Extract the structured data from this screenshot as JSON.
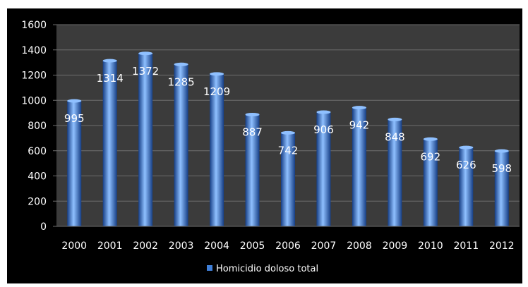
{
  "chart_data": {
    "type": "bar",
    "categories": [
      "2000",
      "2001",
      "2002",
      "2003",
      "2004",
      "2005",
      "2006",
      "2007",
      "2008",
      "2009",
      "2010",
      "2011",
      "2012"
    ],
    "series": [
      {
        "name": "Homicidio doloso total",
        "values": [
          995,
          1314,
          1372,
          1285,
          1209,
          887,
          742,
          906,
          942,
          848,
          692,
          626,
          598
        ]
      }
    ],
    "data_labels": [
      "995",
      "1314",
      "1372",
      "1285",
      "1209",
      "887",
      "742",
      "906",
      "942",
      "848",
      "692",
      "626",
      "598"
    ],
    "y_ticks": [
      "0",
      "200",
      "400",
      "600",
      "800",
      "1000",
      "1200",
      "1400",
      "1600"
    ],
    "ylim": [
      0,
      1600
    ],
    "grid": true,
    "legend_position": "bottom",
    "colors": {
      "background": "#000000",
      "plot_area": "#3b3b3b",
      "gridline": "#6e6e6e",
      "bar": "#3f7fd8",
      "bar_highlight": "#8fc0ff",
      "bar_shadow": "#163e85",
      "text": "#ffffff"
    }
  }
}
